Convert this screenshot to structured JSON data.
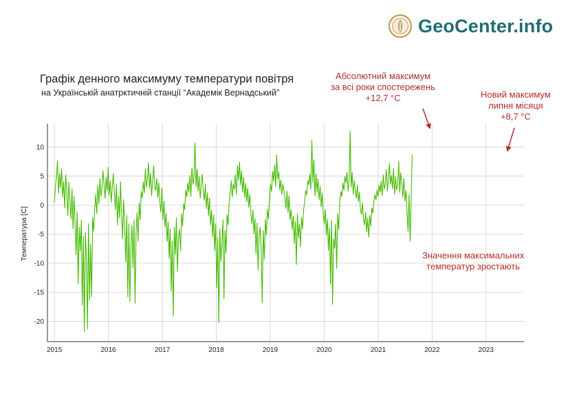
{
  "brand": {
    "name": "GeoCenter.info",
    "logo_icon": "geocenter-logo-icon",
    "color": "#1f6e75"
  },
  "colors": {
    "series": "#44bb00",
    "annotation": "#b42a2a",
    "grid": "#cfcfcf"
  },
  "annotations": {
    "abs_max": [
      "Абсолютний максимум",
      "за всі роки спостережень",
      "+12,7 °С"
    ],
    "new_max": [
      "Новий максимум",
      "липня місяця",
      "+8,7 °С"
    ],
    "trend": [
      "Значення максимальних",
      "температур зростають"
    ]
  },
  "chart_data": {
    "type": "line",
    "title": "Графік денного максимуму температури повітря",
    "subtitle": "на Українській анатрктичній станції “Академік Вернадський”",
    "xlabel": "",
    "ylabel": "Температура [С]",
    "x_tick_labels": [
      "2015",
      "2016",
      "2017",
      "2018",
      "2019",
      "2020",
      "2021",
      "2022",
      "2023"
    ],
    "y_tick_labels": [
      "10",
      "5",
      "0",
      "-5",
      "-10",
      "-15",
      "-20"
    ],
    "xlim": [
      "2014-11-15",
      "2023-09-15"
    ],
    "ylim": [
      -23.5,
      14
    ],
    "grid": true,
    "series": [
      {
        "x_start": "2015-01-01",
        "step_days": 7,
        "values": [
          0.5,
          3.2,
          4.8,
          7.6,
          2.1,
          5.5,
          3.0,
          6.2,
          1.4,
          4.1,
          -0.5,
          5.2,
          2.3,
          -1.8,
          3.9,
          0.7,
          -2.4,
          2.8,
          -4.1,
          1.5,
          -3.2,
          -8.6,
          -1.2,
          -13.5,
          -3.8,
          -7.9,
          -2.6,
          -17.2,
          -5.4,
          -21.8,
          -4.7,
          -9.1,
          -21.3,
          -3.2,
          -16.4,
          -6.8,
          -15.8,
          -2.1,
          -4.5,
          -0.6,
          1.8,
          -1.5,
          3.4,
          0.2,
          4.6,
          1.5,
          2.8,
          5.9,
          3.6,
          1.1,
          4.8,
          2.4,
          6.5,
          1.7,
          4.2,
          0.5,
          3.1,
          5.4,
          2.2,
          -0.8,
          3.6,
          -3.4,
          1.5,
          -2.2,
          4.0,
          -1.6,
          -5.8,
          0.9,
          -3.5,
          -9.8,
          -1.8,
          -15.8,
          -3.2,
          -16.6,
          -7.4,
          -3.5,
          -10.8,
          -2.6,
          -16.9,
          -4.8,
          -1.3,
          -6.2,
          0.4,
          -2.5,
          2.3,
          1.2,
          4.0,
          2.1,
          6.2,
          3.1,
          4.4,
          7.3,
          2.9,
          5.5,
          1.6,
          4.1,
          6.8,
          3.2,
          2.5,
          4.6,
          1.3,
          3.8,
          0.5,
          -1.2,
          2.9,
          -2.5,
          0.7,
          -3.8,
          -1.4,
          -6.3,
          -2.9,
          -9.2,
          -4.1,
          -14.8,
          -6.2,
          -19.1,
          -3.8,
          -8.5,
          -2.2,
          -11.4,
          -5.6,
          -4.2,
          -7.9,
          -1.5,
          -3.6,
          0.2,
          -0.8,
          2.6,
          1.4,
          3.8,
          2.2,
          5.1,
          1.5,
          6.4,
          3.6,
          4.8,
          10.7,
          3.1,
          6.2,
          2.4,
          4.9,
          1.2,
          3.5,
          5.3,
          2.3,
          0.8,
          3.6,
          -0.6,
          2.1,
          -1.8,
          1.2,
          -3.4,
          -0.9,
          -5.5,
          -1.7,
          -7.8,
          -3.2,
          -14.2,
          -5.6,
          -20.2,
          -4.1,
          -9.7,
          -6.8,
          -2.5,
          -16.1,
          -4.3,
          -8.2,
          -1.6,
          -3.4,
          0.3,
          2.1,
          4.2,
          1.4,
          3.6,
          2.7,
          5.2,
          1.9,
          6.8,
          4.3,
          7.4,
          3.5,
          5.9,
          2.2,
          4.8,
          1.3,
          3.7,
          0.6,
          2.9,
          -0.4,
          1.8,
          -1.5,
          -3.2,
          -0.8,
          -4.9,
          -2.3,
          -8.4,
          -3.1,
          -11.2,
          -5.3,
          -3.8,
          -7.6,
          -16.8,
          -4.4,
          -9.3,
          -2.5,
          -5.1,
          -0.7,
          -2.4,
          1.2,
          3.6,
          2.3,
          5.8,
          4.1,
          6.9,
          3.2,
          8.6,
          4.5,
          5.7,
          2.6,
          4.3,
          1.8,
          3.6,
          2.5,
          1.1,
          -0.6,
          2.4,
          -1.3,
          1.6,
          -2.5,
          -0.8,
          -4.2,
          -1.9,
          -6.6,
          -2.8,
          -10.2,
          -1.5,
          -5.6,
          -3.3,
          -7.2,
          -2.1,
          -4.1,
          -0.9,
          0.6,
          2.5,
          1.8,
          4.2,
          3.5,
          5.3,
          2.7,
          11.2,
          3.9,
          7.8,
          1.6,
          5.4,
          2.2,
          4.5,
          0.9,
          3.2,
          -0.3,
          2.1,
          -1.6,
          -3.3,
          -0.8,
          -5.2,
          -2.4,
          -7.8,
          -3.9,
          -13.6,
          -2.6,
          -17.1,
          -5.8,
          -7.4,
          -3.2,
          -10.9,
          -1.5,
          -4.2,
          0.8,
          2.3,
          1.5,
          3.8,
          2.6,
          4.9,
          3.8,
          5.6,
          2.4,
          4.3,
          12.7,
          3.1,
          5.6,
          1.8,
          4.2,
          2.5,
          1.2,
          3.4,
          0.6,
          2.2,
          -0.8,
          -1.6,
          0.4,
          -2.5,
          -3.4,
          -1.2,
          -4.6,
          -2.2,
          -5.5,
          -1.8,
          -3.6,
          -0.5,
          -1.4,
          0.6,
          1.8,
          0.9,
          2.6,
          1.5,
          3.4,
          2.2,
          4.1,
          1.6,
          5.2,
          2.8,
          3.5,
          6.1,
          2.4,
          4.3,
          7.2,
          3.6,
          5.1,
          2.8,
          6.3,
          1.9,
          4.8,
          2.6,
          3.4,
          7.5,
          2.2,
          5.6,
          3.8,
          1.4,
          4.6,
          0.7,
          2.5,
          -1.2,
          -4.5,
          1.8,
          -6.2,
          0.8,
          8.7
        ]
      }
    ]
  }
}
